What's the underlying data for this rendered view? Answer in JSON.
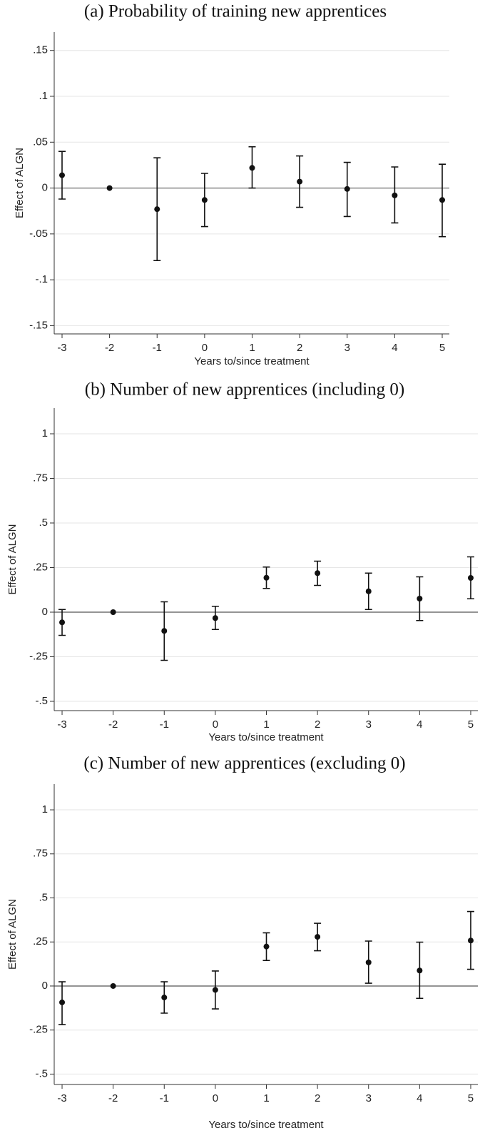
{
  "chart_data": [
    {
      "type": "errorbar",
      "title": "(a)  Probability of training new apprentices",
      "x_label": "Years to/since treatment",
      "y_label": "Effect of ALGN",
      "x": [
        -3,
        -2,
        -1,
        0,
        1,
        2,
        3,
        4,
        5
      ],
      "values": [
        0.014,
        0,
        -0.023,
        -0.013,
        0.022,
        0.007,
        -0.001,
        -0.008,
        -0.013
      ],
      "ci_low": [
        -0.012,
        null,
        -0.079,
        -0.042,
        0,
        -0.021,
        -0.031,
        -0.038,
        -0.053
      ],
      "ci_high": [
        0.04,
        null,
        0.033,
        0.016,
        0.045,
        0.035,
        0.028,
        0.023,
        0.026
      ],
      "xlim": [
        -3.165,
        5.15
      ],
      "xticks": [
        -3,
        -2,
        -1,
        0,
        1,
        2,
        3,
        4,
        5
      ],
      "ylim": [
        -0.159,
        0.17
      ],
      "yticks": [
        {
          "value": 0.15,
          "label": ".15"
        },
        {
          "value": 0.1,
          "label": ".1"
        },
        {
          "value": 0.05,
          "label": ".05"
        },
        0,
        {
          "value": -0.05,
          "label": "-.05"
        },
        {
          "value": -0.1,
          "label": "-.1"
        },
        {
          "value": -0.15,
          "label": "-.15"
        }
      ],
      "reference_line": 0,
      "grid": true,
      "color": "#111111"
    },
    {
      "type": "errorbar",
      "title": "(b)  Number of new apprentices (including 0)",
      "x_label": "Years to/since treatment",
      "y_label": "Effect of ALGN",
      "x": [
        -3,
        -2,
        -1,
        0,
        1,
        2,
        3,
        4,
        5
      ],
      "values": [
        -0.057,
        0,
        -0.105,
        -0.033,
        0.193,
        0.219,
        0.117,
        0.076,
        0.192
      ],
      "ci_low": [
        -0.13,
        null,
        -0.27,
        -0.097,
        0.133,
        0.15,
        0.015,
        -0.047,
        0.075
      ],
      "ci_high": [
        0.015,
        null,
        0.058,
        0.033,
        0.253,
        0.286,
        0.219,
        0.198,
        0.31
      ],
      "xlim": [
        -3.154,
        5.14
      ],
      "xticks": [
        -3,
        -2,
        -1,
        0,
        1,
        2,
        3,
        4,
        5
      ],
      "ylim": [
        -0.552,
        1.144
      ],
      "yticks": [
        1,
        {
          "value": 0.75,
          "label": ".75"
        },
        {
          "value": 0.5,
          "label": ".5"
        },
        {
          "value": 0.25,
          "label": ".25"
        },
        0,
        {
          "value": -0.25,
          "label": "-.25"
        },
        {
          "value": -0.5,
          "label": "-.5"
        }
      ],
      "reference_line": 0,
      "grid": true,
      "color": "#111111"
    },
    {
      "type": "errorbar",
      "title": "(c)  Number of new apprentices (excluding 0)",
      "x_label": "Years to/since treatment",
      "y_label": "Effect of ALGN",
      "x": [
        -3,
        -2,
        -1,
        0,
        1,
        2,
        3,
        4,
        5
      ],
      "values": [
        -0.093,
        0,
        -0.065,
        -0.022,
        0.224,
        0.279,
        0.134,
        0.088,
        0.258
      ],
      "ci_low": [
        -0.219,
        null,
        -0.154,
        -0.13,
        0.145,
        0.2,
        0.016,
        -0.07,
        0.095
      ],
      "ci_high": [
        0.024,
        null,
        0.024,
        0.085,
        0.302,
        0.356,
        0.255,
        0.249,
        0.423
      ],
      "xlim": [
        -3.154,
        5.14
      ],
      "xticks": [
        -3,
        -2,
        -1,
        0,
        1,
        2,
        3,
        4,
        5
      ],
      "ylim": [
        -0.559,
        1.146
      ],
      "yticks": [
        1,
        {
          "value": 0.75,
          "label": ".75"
        },
        {
          "value": 0.5,
          "label": ".5"
        },
        {
          "value": 0.25,
          "label": ".25"
        },
        0,
        {
          "value": -0.25,
          "label": "-.25"
        },
        {
          "value": -0.5,
          "label": "-.5"
        }
      ],
      "reference_line": 0,
      "grid": true,
      "color": "#111111"
    }
  ]
}
